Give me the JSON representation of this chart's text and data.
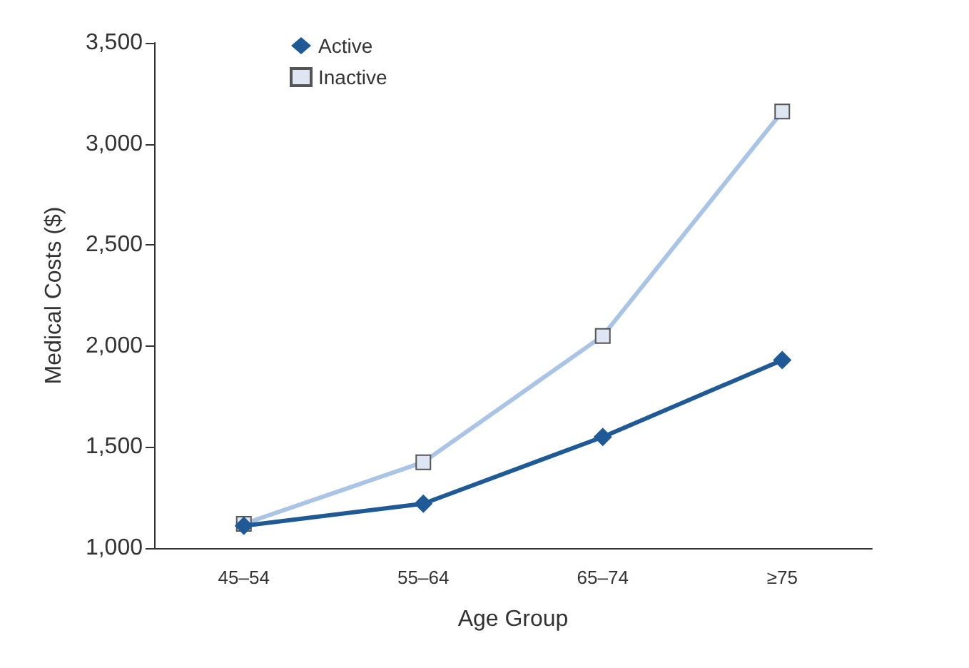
{
  "chart_data": {
    "type": "line",
    "xlabel": "Age Group",
    "ylabel": "Medical Costs ($)",
    "categories": [
      "45–54",
      "55–64",
      "65–74",
      "≥75"
    ],
    "series": [
      {
        "name": "Active",
        "color": "#1f5a96",
        "marker": "diamond",
        "values": [
          1110,
          1220,
          1550,
          1930
        ]
      },
      {
        "name": "Inactive",
        "color": "#a9c4e4",
        "marker": "square",
        "values": [
          1120,
          1425,
          2050,
          3160
        ]
      }
    ],
    "ylim": [
      1000,
      3500
    ],
    "yticks": [
      {
        "value": 1000,
        "label": "1,000"
      },
      {
        "value": 1500,
        "label": "1,500"
      },
      {
        "value": 2000,
        "label": "2,000"
      },
      {
        "value": 2500,
        "label": "2,500"
      },
      {
        "value": 3000,
        "label": "3,000"
      },
      {
        "value": 3500,
        "label": "3,500"
      }
    ],
    "grid": false,
    "legend": "top left",
    "line_style": "solid"
  }
}
